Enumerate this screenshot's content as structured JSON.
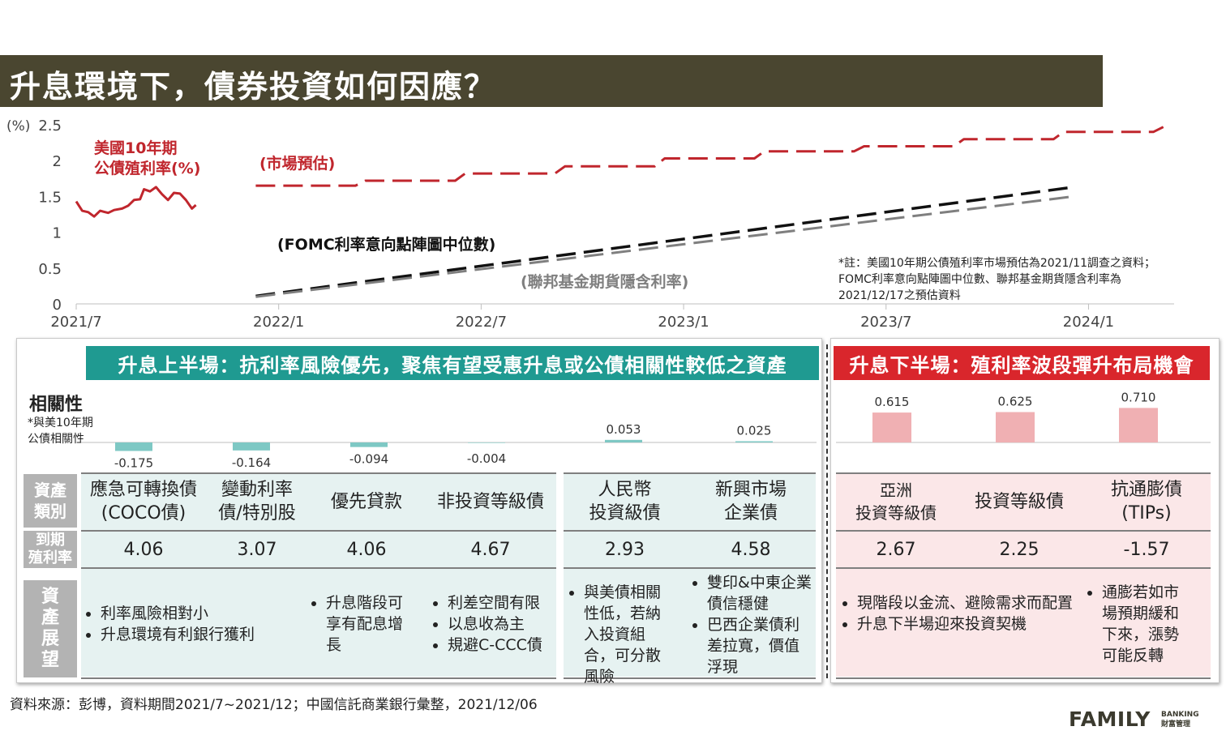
{
  "title": "升息環境下，債券投資如何因應？",
  "chart_data": {
    "type": "line",
    "yunit": "(%)",
    "ylim": [
      0,
      2.5
    ],
    "yticks": [
      "0",
      "0.5",
      "1",
      "1.5",
      "2",
      "2.5"
    ],
    "xticks": [
      "2021/7",
      "2022/1",
      "2022/7",
      "2023/1",
      "2023/7",
      "2024/1"
    ],
    "series": [
      {
        "name": "美國10年期\n公債殖利率(%)",
        "label_lines": [
          "美國10年期",
          "公債殖利率(%)"
        ],
        "color": "#c0262d",
        "style": "solid",
        "points": [
          [
            0,
            1.43
          ],
          [
            0.3,
            1.3
          ],
          [
            0.6,
            1.28
          ],
          [
            0.9,
            1.22
          ],
          [
            1.2,
            1.3
          ],
          [
            1.6,
            1.27
          ],
          [
            1.9,
            1.31
          ],
          [
            2.3,
            1.33
          ],
          [
            2.6,
            1.37
          ],
          [
            2.9,
            1.45
          ],
          [
            3.2,
            1.46
          ],
          [
            3.4,
            1.6
          ],
          [
            3.7,
            1.57
          ],
          [
            4.0,
            1.63
          ],
          [
            4.3,
            1.53
          ],
          [
            4.6,
            1.45
          ],
          [
            4.9,
            1.55
          ],
          [
            5.2,
            1.54
          ],
          [
            5.5,
            1.45
          ],
          [
            5.8,
            1.33
          ],
          [
            6.0,
            1.38
          ]
        ]
      },
      {
        "name": "(市場預估)",
        "color": "#c0262d",
        "style": "dashed",
        "points": [
          [
            9.0,
            1.65
          ],
          [
            14.0,
            1.65
          ],
          [
            14.5,
            1.72
          ],
          [
            19.0,
            1.72
          ],
          [
            19.5,
            1.82
          ],
          [
            24.0,
            1.82
          ],
          [
            24.5,
            1.92
          ],
          [
            29.0,
            1.92
          ],
          [
            29.5,
            2.03
          ],
          [
            34.0,
            2.03
          ],
          [
            34.5,
            2.13
          ],
          [
            39.0,
            2.13
          ],
          [
            39.5,
            2.2
          ],
          [
            44.0,
            2.2
          ],
          [
            44.5,
            2.3
          ],
          [
            49.0,
            2.3
          ],
          [
            49.5,
            2.4
          ],
          [
            54.0,
            2.4
          ],
          [
            54.5,
            2.47
          ]
        ]
      },
      {
        "name": "(FOMC利率意向點陣圖中位數)",
        "color": "#111111",
        "style": "dashed",
        "points": [
          [
            9.0,
            0.11
          ],
          [
            50.0,
            1.63
          ]
        ]
      },
      {
        "name": "(聯邦基金期貨隱含利率)",
        "color": "#7f7f7f",
        "style": "dashed",
        "points": [
          [
            9.0,
            0.1
          ],
          [
            50.0,
            1.5
          ]
        ]
      }
    ],
    "note_lines": [
      "*註：美國10年期公債殖利率市場預估為2021/11調查之資料；",
      "FOMC利率意向點陣圖中位數、聯邦基金期貨隱含利率為",
      "2021/12/17之預估資料"
    ]
  },
  "correlation": {
    "title": "相關性",
    "subtitle_lines": [
      "*與美10年期",
      "公債相關性"
    ],
    "bars": [
      {
        "value": -0.175,
        "label": "-0.175",
        "color": "#7ec8c4"
      },
      {
        "value": -0.164,
        "label": "-0.164",
        "color": "#7ec8c4"
      },
      {
        "value": -0.094,
        "label": "-0.094",
        "color": "#7ec8c4"
      },
      {
        "value": -0.004,
        "label": "-0.004",
        "color": "#7ec8c4"
      },
      {
        "value": 0.053,
        "label": "0.053",
        "color": "#7ec8c4"
      },
      {
        "value": 0.025,
        "label": "0.025",
        "color": "#7ec8c4"
      },
      {
        "value": 0.615,
        "label": "0.615",
        "color": "#f0b0b3"
      },
      {
        "value": 0.625,
        "label": "0.625",
        "color": "#f0b0b3"
      },
      {
        "value": 0.71,
        "label": "0.710",
        "color": "#f0b0b3"
      }
    ]
  },
  "left_panel": {
    "header": "升息上半場：抗利率風險優先，聚焦有望受惠升息或公債相關性較低之資產",
    "row_labels": {
      "asset": [
        "資產",
        "類別"
      ],
      "yield": [
        "到期",
        "殖利率"
      ],
      "outlook": [
        "資",
        "產",
        "展",
        "望"
      ]
    },
    "assets": [
      {
        "name_lines": [
          "應急可轉換債",
          "(COCO債)"
        ],
        "yield": "4.06"
      },
      {
        "name_lines": [
          "變動利率",
          "債/特別股"
        ],
        "yield": "3.07"
      },
      {
        "name_lines": [
          "優先貸款"
        ],
        "yield": "4.06"
      },
      {
        "name_lines": [
          "非投資等級債"
        ],
        "yield": "4.67"
      },
      {
        "name_lines": [
          "人民幣",
          "投資級債"
        ],
        "yield": "2.93"
      },
      {
        "name_lines": [
          "新興市場",
          "企業債"
        ],
        "yield": "4.58"
      }
    ],
    "outlooks": [
      [
        "利率風險相對小",
        "升息環境有利銀行獲利"
      ],
      [
        "升息階段可享有配息增長"
      ],
      [
        "利差空間有限",
        "以息收為主",
        "規避C-CCC債"
      ],
      [
        "與美債相關性低，若納入投資組合，可分散風險"
      ],
      [
        "雙印&中東企業債信穩健",
        "巴西企業債利差拉寬，價值浮現"
      ]
    ]
  },
  "right_panel": {
    "header": "升息下半場：殖利率波段彈升布局機會",
    "assets": [
      {
        "name_lines": [
          "亞洲",
          "投資等級債"
        ],
        "yield": "2.67"
      },
      {
        "name_lines": [
          "投資等級債"
        ],
        "yield": "2.25"
      },
      {
        "name_lines": [
          "抗通膨債",
          "(TIPs)"
        ],
        "yield": "-1.57"
      }
    ],
    "outlooks": [
      [
        "現階段以金流、避險需求而配置",
        "升息下半場迎來投資契機"
      ],
      [
        "通膨若如市場預期緩和下來，漲勢可能反轉"
      ]
    ]
  },
  "colors": {
    "title_bg": "#4a4630",
    "teal": "#1f9a91",
    "red": "#d9262c",
    "teal_light": "#e6f2f1",
    "pink_light": "#fbe7e8"
  },
  "footer": {
    "source": "資料來源：彭博，資料期間2021/7~2021/12；中國信託商業銀行彙整，2021/12/06",
    "logo_main": "FAMILY",
    "logo_sub_top": "BANKING",
    "logo_sub_bottom": "財富管理"
  }
}
